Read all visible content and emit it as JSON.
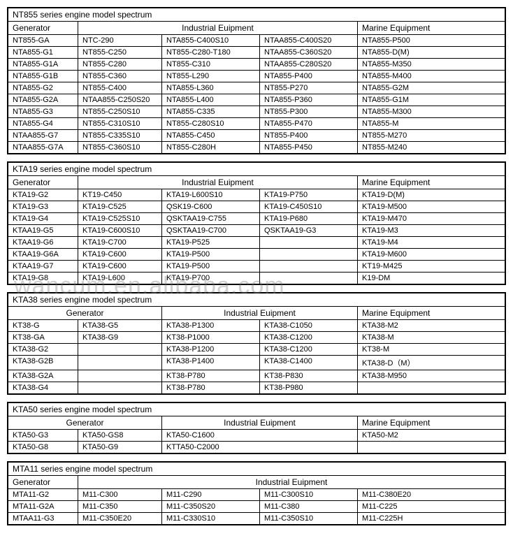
{
  "watermark": "wancum.en.alibaba.com",
  "nt855": {
    "title": "NT855 series engine model spectrum",
    "headers": {
      "gen": "Generator",
      "ind": "Industrial Euipment",
      "mar": "Marine Equipment"
    },
    "rows": [
      [
        "NT855-GA",
        "NTC-290",
        "NTA855-C400S10",
        "NTAA855-C400S20",
        "NTA855-P500"
      ],
      [
        "NTA855-G1",
        "NT855-C250",
        "NT855-C280-T180",
        "NTAA855-C360S20",
        "NTA855-D(M)"
      ],
      [
        "NTA855-G1A",
        "NT855-C280",
        "NT855-C310",
        "NTAA855-C280S20",
        "NTA855-M350"
      ],
      [
        "NTA855-G1B",
        "NT855-C360",
        "NT855-L290",
        "NTA855-P400",
        "NTA855-M400"
      ],
      [
        "NTA855-G2",
        "NT855-C400",
        "NTA855-L360",
        "NT855-P270",
        "NTA855-G2M"
      ],
      [
        "NTA855-G2A",
        "NTAA855-C250S20",
        "NTA855-L400",
        "NTA855-P360",
        "NTA855-G1M"
      ],
      [
        "NTA855-G3",
        "NT855-C250S10",
        "NTA855-C335",
        "NT855-P300",
        "NTA855-M300"
      ],
      [
        "NTA855-G4",
        "NT855-C310S10",
        "NT855-C280S10",
        "NTA855-P470",
        "NTA855-M"
      ],
      [
        "NTAA855-G7",
        "NT855-C335S10",
        "NTA855-C450",
        "NT855-P400",
        "NT855-M270"
      ],
      [
        "NTAA855-G7A",
        "NT855-C360S10",
        "NT855-C280H",
        "NTA855-P450",
        "NT855-M240"
      ]
    ]
  },
  "kta19": {
    "title": "KTA19 series engine model spectrum",
    "headers": {
      "gen": "Generator",
      "ind": "Industrial Euipment",
      "mar": "Marine Equipment"
    },
    "rows": [
      [
        "KTA19-G2",
        "KT19-C450",
        "KTA19-L600S10",
        "KTA19-P750",
        "KTA19-D(M)"
      ],
      [
        "KTA19-G3",
        "KTA19-C525",
        "QSK19-C600",
        "KTA19-C450S10",
        "KTA19-M500"
      ],
      [
        "KTA19-G4",
        "KTA19-C525S10",
        "QSKTAA19-C755",
        "KTA19-P680",
        "KTA19-M470"
      ],
      [
        "KTAA19-G5",
        "KTA19-C600S10",
        "QSKTAA19-C700",
        "QSKTAA19-G3",
        "KTA19-M3"
      ],
      [
        "KTAA19-G6",
        "KTA19-C700",
        "KTA19-P525",
        "",
        "KTA19-M4"
      ],
      [
        "KTAA19-G6A",
        "KTA19-C600",
        "KTA19-P500",
        "",
        "KTA19-M600"
      ],
      [
        "KTAA19-G7",
        "KTA19-C600",
        "KTA19-P500",
        "",
        "KT19-M425"
      ],
      [
        "KTA19-G8",
        "KTA19-L600",
        "KTA19-P700",
        "",
        "K19-DM"
      ]
    ]
  },
  "kta38": {
    "title": "KTA38 series engine model spectrum",
    "headers": {
      "gen": "Generator",
      "ind": "Industrial Euipment",
      "mar": "Marine Equipment"
    },
    "rows": [
      [
        "KT38-G",
        "KTA38-G5",
        "KTA38-P1300",
        "KTA38-C1050",
        "KTA38-M2"
      ],
      [
        "KT38-GA",
        "KTA38-G9",
        "KT38-P1000",
        "KTA38-C1200",
        "KTA38-M"
      ],
      [
        "KTA38-G2",
        "",
        "KTA38-P1200",
        "KTA38-C1200",
        "KT38-M"
      ],
      [
        "KTA38-G2B",
        "",
        "KTA38-P1400",
        "KTA38-C1400",
        "KTA38-D（M）"
      ],
      [
        "KTA38-G2A",
        "",
        "KT38-P780",
        "KT38-P830",
        "KTA38-M950"
      ],
      [
        "KTA38-G4",
        "",
        "KT38-P780",
        "KT38-P980",
        ""
      ]
    ]
  },
  "kta50": {
    "title": "KTA50 series engine model spectrum",
    "headers": {
      "gen": "Generator",
      "ind": "Industrial Euipment",
      "mar": "Marine Equipment"
    },
    "rows": [
      [
        "KTA50-G3",
        "KTA50-GS8",
        "KTA50-C1600",
        "KTA50-M2"
      ],
      [
        "KTA50-G8",
        "KTA50-G9",
        "KTTA50-C2000",
        ""
      ]
    ]
  },
  "mta11": {
    "title": "MTA11 series engine model spectrum",
    "headers": {
      "gen": "Generator",
      "ind": "Industrial Euipment"
    },
    "rows": [
      [
        "MTA11-G2",
        "M11-C300",
        "M11-C290",
        "M11-C300S10",
        "M11-C380E20"
      ],
      [
        "MTA11-G2A",
        "M11-C350",
        "M11-C350S20",
        "M11-C380",
        "M11-C225"
      ],
      [
        "MTAA11-G3",
        "M11-C350E20",
        "M11-C330S10",
        "M11-C350S10",
        "M11-C225H"
      ]
    ]
  }
}
